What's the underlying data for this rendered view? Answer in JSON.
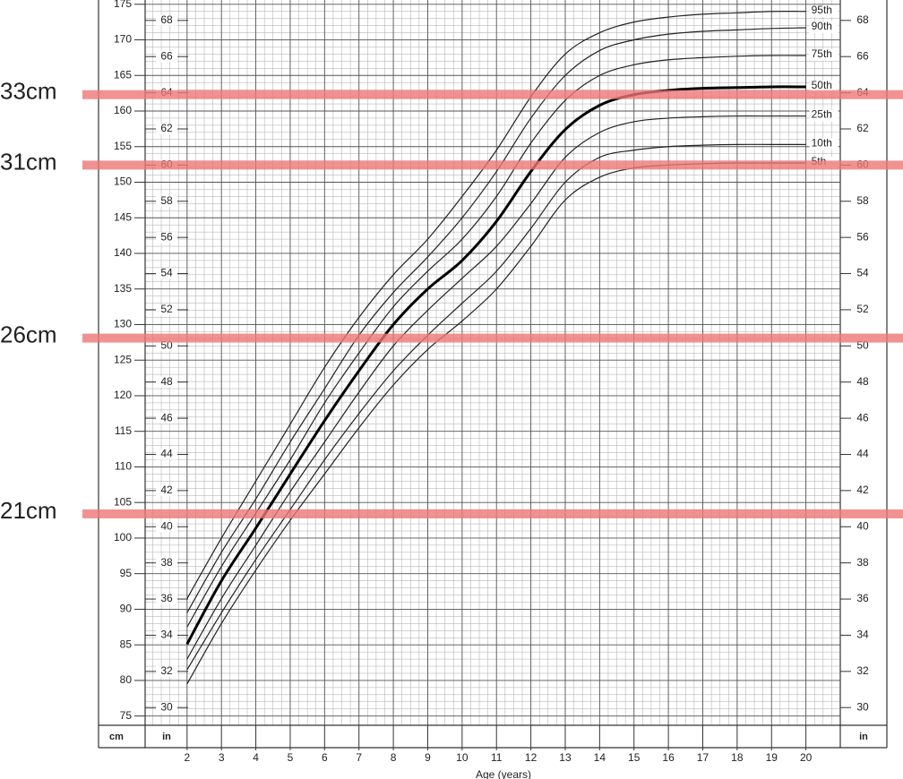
{
  "chart_data": {
    "type": "line",
    "x_label": "Age (years)",
    "y_unit": "cm",
    "y2_unit": "in",
    "x": [
      2,
      3,
      4,
      5,
      6,
      7,
      8,
      9,
      10,
      11,
      12,
      13,
      14,
      15,
      16,
      17,
      18,
      19,
      20
    ],
    "xlim": [
      0.78,
      21
    ],
    "xticks": [
      2,
      3,
      4,
      5,
      6,
      7,
      8,
      9,
      10,
      11,
      12,
      13,
      14,
      15,
      16,
      17,
      18,
      19,
      20
    ],
    "ylim": [
      73.7,
      175.6
    ],
    "yticks": [
      75,
      80,
      85,
      90,
      95,
      100,
      105,
      110,
      115,
      120,
      125,
      130,
      135,
      140,
      145,
      150,
      155,
      160,
      165,
      170,
      175
    ],
    "y2lim": [
      29.02,
      69.13
    ],
    "y2ticks": [
      30,
      32,
      34,
      36,
      38,
      40,
      42,
      44,
      46,
      48,
      50,
      52,
      54,
      56,
      58,
      60,
      62,
      64,
      66,
      68
    ],
    "grid": true,
    "series": [
      {
        "name": "95th",
        "color": "#222",
        "values": [
          91.5,
          100,
          108,
          116,
          124,
          131,
          137,
          142,
          148,
          154.5,
          162,
          168,
          171,
          172.5,
          173.2,
          173.6,
          173.8,
          174,
          174
        ]
      },
      {
        "name": "90th",
        "color": "#222",
        "values": [
          89.5,
          98,
          105.5,
          113.5,
          121,
          128.5,
          134.5,
          139.5,
          145,
          151.5,
          159,
          165,
          168.5,
          170,
          170.8,
          171.2,
          171.4,
          171.6,
          171.7
        ]
      },
      {
        "name": "75th",
        "color": "#222",
        "values": [
          87.5,
          96,
          103.5,
          111,
          119,
          126,
          132.5,
          137.5,
          142,
          148,
          155.5,
          161.5,
          165,
          166.5,
          167.2,
          167.5,
          167.7,
          167.8,
          167.8
        ]
      },
      {
        "name": "50th",
        "color": "#000",
        "values": [
          85.1,
          94,
          101.4,
          109,
          116.5,
          123.5,
          130,
          135,
          139,
          144.5,
          151.5,
          157.4,
          160.8,
          162.3,
          162.9,
          163.2,
          163.3,
          163.4,
          163.4
        ]
      },
      {
        "name": "25th",
        "color": "#222",
        "values": [
          83,
          91.5,
          99,
          106.5,
          113.5,
          120.5,
          127,
          132,
          136.5,
          141,
          147,
          153.5,
          157,
          158.5,
          159,
          159.2,
          159.3,
          159.3,
          159.3
        ]
      },
      {
        "name": "10th",
        "color": "#222",
        "values": [
          81.5,
          89.5,
          97,
          104,
          111,
          117.5,
          123.5,
          128.5,
          133,
          137.5,
          143.5,
          150,
          153.5,
          154.5,
          155,
          155.2,
          155.3,
          155.3,
          155.3
        ]
      },
      {
        "name": "5th",
        "color": "#222",
        "values": [
          79.5,
          88,
          95.5,
          102.5,
          109,
          115.5,
          121.5,
          126.5,
          130.5,
          135,
          141,
          147.5,
          150.7,
          152,
          152.4,
          152.6,
          152.7,
          152.7,
          152.7
        ]
      }
    ],
    "annotations": [
      {
        "text": "33cm",
        "y": 162.3,
        "color": "#ee7777"
      },
      {
        "text": "31cm",
        "y": 152.4,
        "color": "#ee7777"
      },
      {
        "text": "26cm",
        "y": 128.1,
        "color": "#ee7777"
      },
      {
        "text": "21cm",
        "y": 103.4,
        "color": "#ee7777"
      }
    ]
  }
}
